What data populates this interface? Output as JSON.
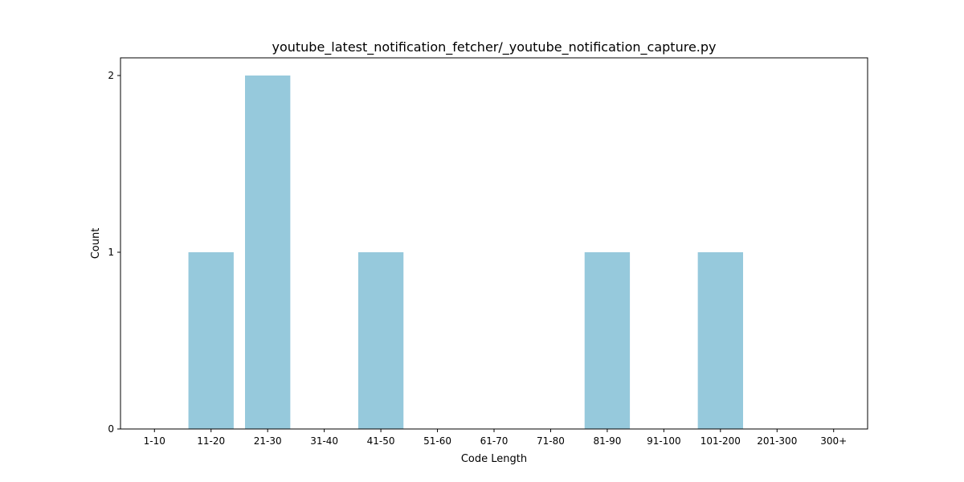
{
  "chart_data": {
    "type": "bar",
    "title": "youtube_latest_notification_fetcher/_youtube_notification_capture.py",
    "xlabel": "Code Length",
    "ylabel": "Count",
    "categories": [
      "1-10",
      "11-20",
      "21-30",
      "31-40",
      "41-50",
      "51-60",
      "61-70",
      "71-80",
      "81-90",
      "91-100",
      "101-200",
      "201-300",
      "300+"
    ],
    "values": [
      0,
      1,
      2,
      0,
      1,
      0,
      0,
      0,
      1,
      0,
      1,
      0,
      0
    ],
    "ylim": [
      0,
      2.1
    ],
    "yticks": [
      0,
      1,
      2
    ],
    "bar_color": "#96c9dc",
    "grid": false,
    "legend": "none"
  }
}
